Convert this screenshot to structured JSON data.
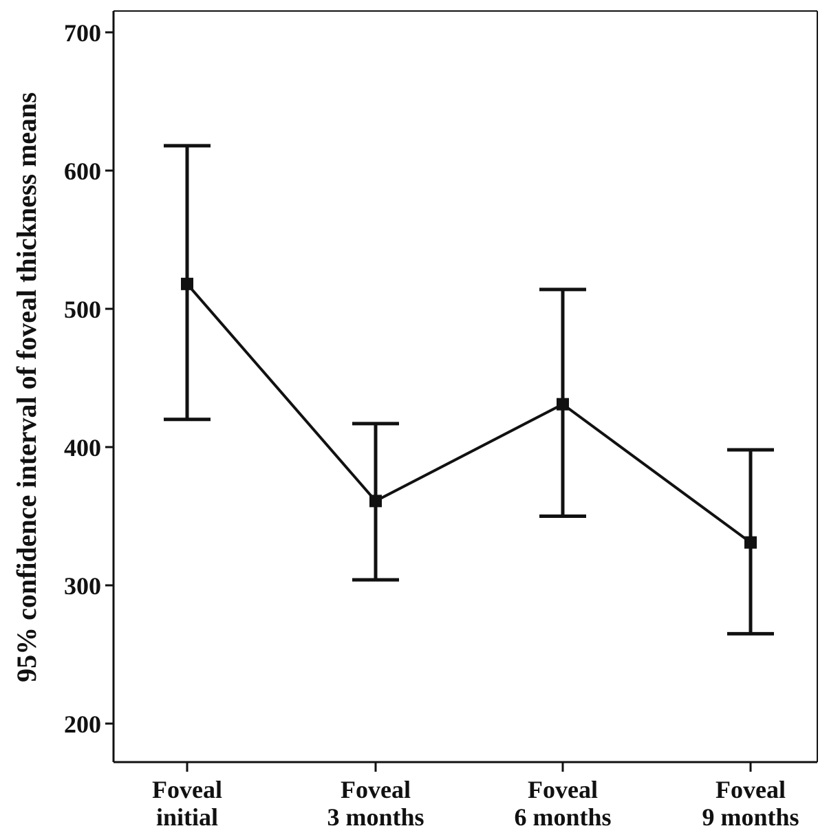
{
  "chart_data": {
    "type": "line",
    "title": "",
    "ylabel": "95% confidence interval of foveal thickness means",
    "xlabel": "",
    "ylim": [
      180,
      720
    ],
    "yticks": [
      "200",
      "300",
      "400",
      "500",
      "600",
      "700"
    ],
    "categories": [
      {
        "line1": "Foveal",
        "line2": "initial"
      },
      {
        "line1": "Foveal",
        "line2": "3 months"
      },
      {
        "line1": "Foveal",
        "line2": "6 months"
      },
      {
        "line1": "Foveal",
        "line2": "9 months"
      }
    ],
    "series": [
      {
        "mean": [
          518,
          361,
          431,
          331
        ],
        "lower": [
          420,
          304,
          350,
          265
        ],
        "upper": [
          618,
          417,
          514,
          398
        ]
      }
    ],
    "grid": false,
    "colors": {
      "line": "#111111",
      "axis": "#111111"
    }
  }
}
